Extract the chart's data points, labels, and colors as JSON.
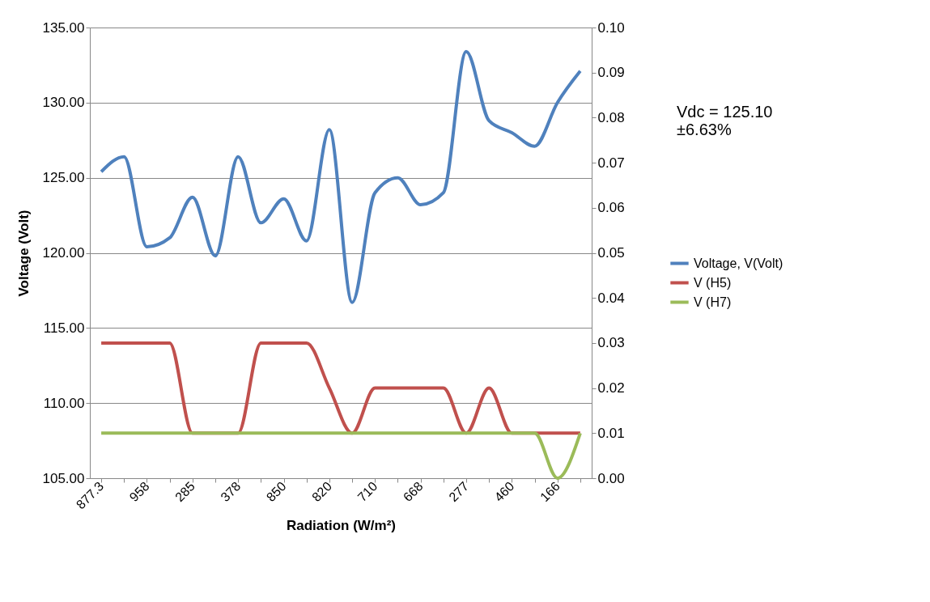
{
  "chart_data": {
    "type": "line",
    "xlabel": "Radiation (W/m²)",
    "ylabel": "Voltage (Volt)",
    "categories": [
      "877.3",
      null,
      "958",
      null,
      "285",
      null,
      "378",
      null,
      "850",
      null,
      "820",
      null,
      "710",
      null,
      "668",
      null,
      "277",
      null,
      "460",
      null,
      "166",
      null
    ],
    "series": [
      {
        "name": "Voltage, V(Volt)",
        "color": "#4f81bd",
        "values": [
          125.4,
          126.4,
          120.4,
          121.0,
          123.7,
          119.8,
          126.4,
          122.0,
          123.6,
          120.8,
          128.2,
          116.7,
          124.0,
          125.0,
          123.2,
          124.0,
          133.4,
          128.8,
          128.0,
          127.1,
          130.0,
          132.1
        ]
      },
      {
        "name": "V (H5)",
        "color": "#c0504d",
        "axis": "y2",
        "values": [
          0.03,
          0.03,
          0.03,
          0.03,
          0.01,
          0.01,
          0.01,
          0.03,
          0.03,
          0.03,
          0.02,
          0.01,
          0.02,
          0.02,
          0.02,
          0.02,
          0.01,
          0.02,
          0.01,
          0.01,
          0.01,
          0.01
        ]
      },
      {
        "name": "V (H7)",
        "color": "#9bbb59",
        "axis": "y2",
        "values": [
          0.01,
          0.01,
          0.01,
          0.01,
          0.01,
          0.01,
          0.01,
          0.01,
          0.01,
          0.01,
          0.01,
          0.01,
          0.01,
          0.01,
          0.01,
          0.01,
          0.01,
          0.01,
          0.01,
          0.01,
          0.0,
          0.01
        ]
      }
    ],
    "ylim": [
      105,
      135
    ],
    "yticks": [
      {
        "value": 105,
        "label": "105.00"
      },
      {
        "value": 110,
        "label": "110.00"
      },
      {
        "value": 115,
        "label": "115.00"
      },
      {
        "value": 120,
        "label": "120.00"
      },
      {
        "value": 125,
        "label": "125.00"
      },
      {
        "value": 130,
        "label": "130.00"
      },
      {
        "value": 135,
        "label": "135.00"
      }
    ],
    "y2lim": [
      0,
      0.1
    ],
    "y2ticks": [
      {
        "value": 0,
        "label": "0.00"
      },
      {
        "value": 0.01,
        "label": "0.01"
      },
      {
        "value": 0.02,
        "label": "0.02"
      },
      {
        "value": 0.03,
        "label": "0.03"
      },
      {
        "value": 0.04,
        "label": "0.04"
      },
      {
        "value": 0.05,
        "label": "0.05"
      },
      {
        "value": 0.06,
        "label": "0.06"
      },
      {
        "value": 0.07,
        "label": "0.07"
      },
      {
        "value": 0.08,
        "label": "0.08"
      },
      {
        "value": 0.09,
        "label": "0.09"
      },
      {
        "value": 0.1,
        "label": "0.10"
      }
    ],
    "grid": "y",
    "legend": "right",
    "marker": "none",
    "line_style": "solid",
    "annotations": [
      "Vdc = 125.10\n±6.63%"
    ]
  }
}
